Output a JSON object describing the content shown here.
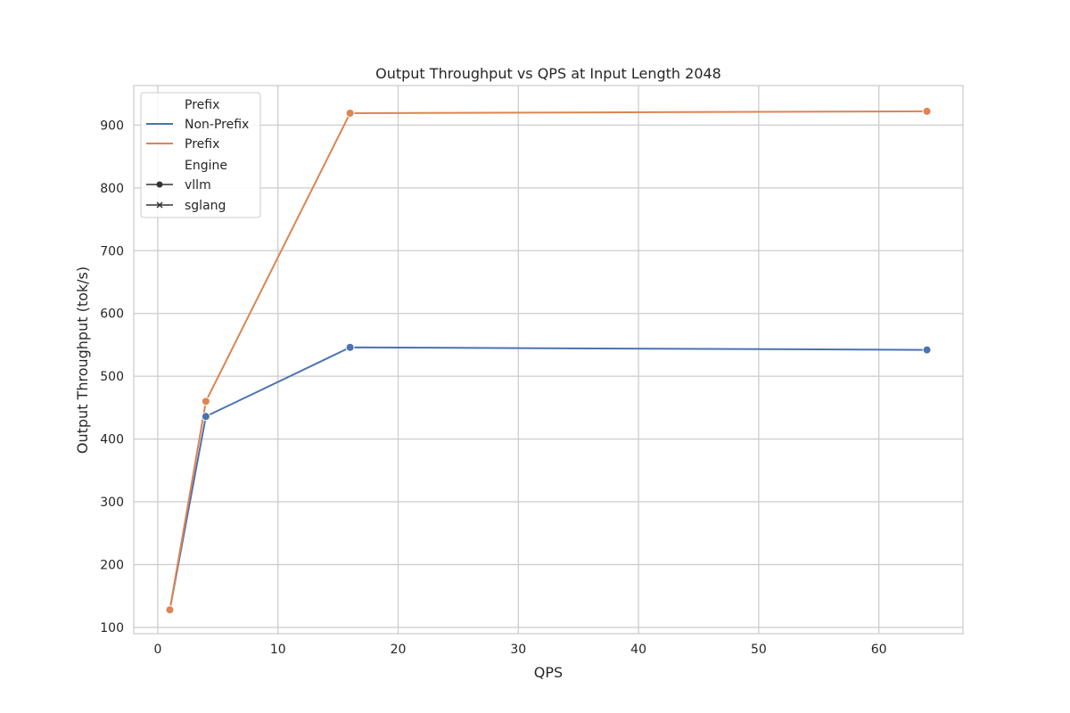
{
  "chart_data": {
    "type": "line",
    "title": "Output Throughput vs QPS at Input Length 2048",
    "xlabel": "QPS",
    "ylabel": "Output Throughput (tok/s)",
    "xlim": [
      -2,
      67
    ],
    "ylim": [
      90,
      963
    ],
    "xticks": [
      0,
      10,
      20,
      30,
      40,
      50,
      60
    ],
    "yticks": [
      100,
      200,
      300,
      400,
      500,
      600,
      700,
      800,
      900
    ],
    "grid": true,
    "legend_placement": "top-left",
    "legend": {
      "groups": [
        {
          "title": "Prefix",
          "entries": [
            {
              "label": "Non-Prefix",
              "kind": "line",
              "color": "#4c72b0"
            },
            {
              "label": "Prefix",
              "kind": "line",
              "color": "#dd8452"
            }
          ]
        },
        {
          "title": "Engine",
          "entries": [
            {
              "label": "vllm",
              "kind": "marker-circle",
              "color": "#333333"
            },
            {
              "label": "sglang",
              "kind": "marker-x",
              "color": "#333333"
            }
          ]
        }
      ]
    },
    "series": [
      {
        "name": "Non-Prefix",
        "engine": "vllm",
        "color": "#4c72b0",
        "x": [
          1,
          4,
          16,
          64
        ],
        "y": [
          128,
          436,
          546,
          542
        ]
      },
      {
        "name": "Prefix",
        "engine": "vllm",
        "color": "#dd8452",
        "x": [
          1,
          4,
          16,
          64
        ],
        "y": [
          128,
          460,
          919,
          922
        ]
      }
    ]
  }
}
